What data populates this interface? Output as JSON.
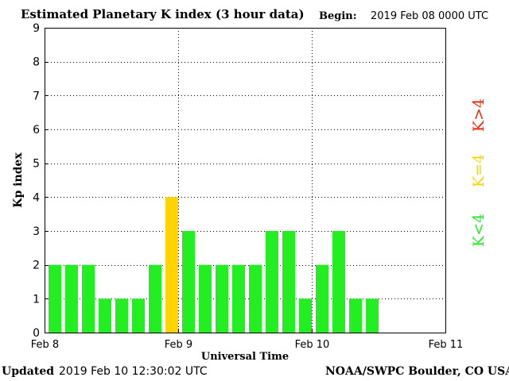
{
  "header": {
    "title": "Estimated Planetary K index (3 hour data)",
    "begin_label": "Begin:",
    "begin_value": "2019 Feb 08 0000 UTC"
  },
  "footer": {
    "updated_label": "Updated",
    "updated_value": "2019 Feb 10 12:30:02 UTC",
    "credit": "NOAA/SWPC Boulder, CO USA"
  },
  "legend": {
    "items": [
      {
        "label": "K>4",
        "color": "#ff2200"
      },
      {
        "label": "K=4",
        "color": "#ffd400"
      },
      {
        "label": "K<4",
        "color": "#22ee22"
      }
    ]
  },
  "chart_data": {
    "type": "bar",
    "xlabel": "Universal Time",
    "ylabel": "Kp index",
    "ylim": [
      0,
      9
    ],
    "y_ticks": [
      0,
      1,
      2,
      3,
      4,
      5,
      6,
      7,
      8,
      9
    ],
    "x_tick_labels": [
      "Feb 8",
      "Feb 9",
      "Feb 10",
      "Feb 11"
    ],
    "interval_hours": 3,
    "total_intervals": 24,
    "grid": true,
    "legend_position": "right",
    "colors": {
      "below": "#22ee22",
      "equal": "#ffd400",
      "above": "#ff2200"
    },
    "values": [
      2,
      2,
      2,
      1,
      1,
      1,
      2,
      4,
      3,
      2,
      2,
      2,
      2,
      3,
      3,
      1,
      2,
      3,
      1,
      1
    ]
  }
}
